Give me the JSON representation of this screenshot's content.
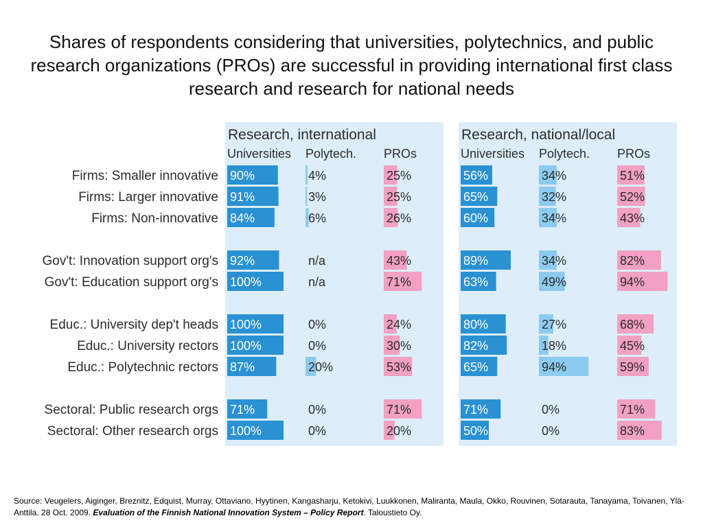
{
  "title": "Shares of respondents considering that universities, polytechnics, and public research organizations (PROs) are successful in providing international first class research and research for national needs",
  "source": {
    "prefix": "Source: Veugelers, Aiginger, Breznitz, Edquist, Murray, Ottaviano, Hyytinen, Kangasharju, Ketokivi, Luukkonen, Maliranta, Maula, Okko, Rouvinen, Sotarauta, Tanayama, Toivanen, Ylä-Anttila. 28 Oct. 2009.",
    "bold": "Evaluation of the Finnish National Innovation System – Policy Report",
    "suffix": ". Taloustieto Oy."
  },
  "colors": {
    "panel_bg": "#ddeefa",
    "universities": "#2a91d3",
    "polytech": "#8ccbef",
    "pros": "#f2a0c3"
  },
  "chart_data": {
    "type": "bar",
    "series_names": [
      "Universities",
      "Polytech.",
      "PROs"
    ],
    "row_groups": [
      [
        "Firms: Smaller innovative",
        "Firms: Larger innovative",
        "Firms: Non-innovative"
      ],
      [
        "Gov't: Innovation support org's",
        "Gov't: Education support org's"
      ],
      [
        "Educ.: University dep't heads",
        "Educ.: University rectors",
        "Educ.: Polytechnic rectors"
      ],
      [
        "Sectoral: Public research orgs",
        "Sectoral: Other research orgs"
      ]
    ],
    "panels": [
      {
        "title": "Research, international",
        "values": [
          [
            90,
            4,
            25
          ],
          [
            91,
            3,
            25
          ],
          [
            84,
            6,
            26
          ],
          [
            92,
            null,
            43
          ],
          [
            100,
            null,
            71
          ],
          [
            100,
            0,
            24
          ],
          [
            100,
            0,
            30
          ],
          [
            87,
            20,
            53
          ],
          [
            71,
            0,
            71
          ],
          [
            100,
            0,
            20
          ]
        ]
      },
      {
        "title": "Research, national/local",
        "values": [
          [
            56,
            34,
            51
          ],
          [
            65,
            32,
            52
          ],
          [
            60,
            34,
            43
          ],
          [
            89,
            34,
            82
          ],
          [
            63,
            49,
            94
          ],
          [
            80,
            27,
            68
          ],
          [
            82,
            18,
            45
          ],
          [
            65,
            94,
            59
          ],
          [
            71,
            0,
            71
          ],
          [
            50,
            0,
            83
          ]
        ]
      }
    ],
    "na_label": "n/a",
    "unit": "%"
  }
}
